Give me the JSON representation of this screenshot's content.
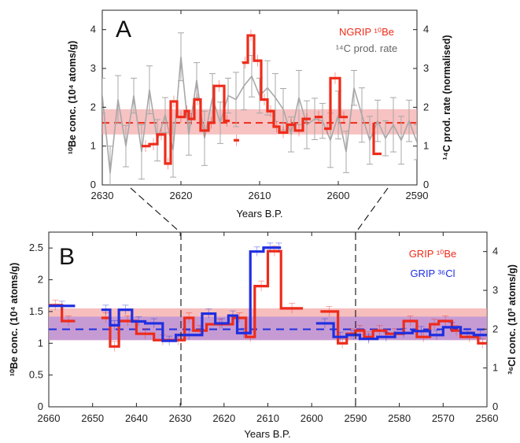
{
  "colors": {
    "red": "#ee2b1a",
    "blue": "#1f2fe0",
    "gray": "#a8a8a8",
    "red_band": "#f4a8a8",
    "purple_band": "#b58fd9"
  },
  "chart_data": [
    {
      "panel": "A",
      "type": "line",
      "xlabel": "Years B.P.",
      "ylabel_left": "¹⁰Be conc. (10⁴ atoms/g)",
      "ylabel_right": "¹⁴C prod. rate (normalised)",
      "xlim": [
        2630,
        2590
      ],
      "ylim": [
        0,
        4.5
      ],
      "xticks": [
        2630,
        2620,
        2610,
        2600,
        2590
      ],
      "yticks": [
        0,
        1,
        2,
        3,
        4
      ],
      "grid": false,
      "legend_position": "top-right",
      "legend": [
        {
          "label": "NGRIP ¹⁰Be",
          "color": "red"
        },
        {
          "label": "¹⁴C prod. rate",
          "color": "gray"
        }
      ],
      "band": {
        "min": 1.3,
        "max": 1.95,
        "mean": 1.6
      },
      "series": [
        {
          "name": "NGRIP ¹⁰Be",
          "kind": "step",
          "color": "red",
          "segments": [
            [
              [
                2625,
                1.0
              ],
              [
                2624,
                1.0
              ],
              [
                2624,
                1.05
              ],
              [
                2623,
                1.05
              ],
              [
                2623,
                1.3
              ],
              [
                2622,
                1.3
              ],
              [
                2622,
                0.55
              ],
              [
                2621.3,
                0.55
              ],
              [
                2621.3,
                2.15
              ],
              [
                2620.5,
                2.15
              ],
              [
                2620.5,
                1.75
              ],
              [
                2619.5,
                1.75
              ],
              [
                2619.5,
                1.9
              ],
              [
                2619,
                1.9
              ],
              [
                2619,
                1.7
              ],
              [
                2618.3,
                1.7
              ],
              [
                2618.3,
                2.2
              ],
              [
                2617.5,
                2.2
              ],
              [
                2617.5,
                1.4
              ],
              [
                2616.5,
                1.4
              ],
              [
                2616.5,
                1.6
              ],
              [
                2615.8,
                1.6
              ],
              [
                2615.8,
                2.55
              ],
              [
                2614.5,
                2.55
              ],
              [
                2614.5,
                1.65
              ],
              [
                2613.8,
                1.65
              ]
            ],
            [
              [
                2613.3,
                1.15
              ],
              [
                2612.6,
                1.15
              ]
            ],
            [
              [
                2612.2,
                3.15
              ],
              [
                2611.5,
                3.15
              ],
              [
                2611.5,
                3.85
              ],
              [
                2610.7,
                3.85
              ],
              [
                2610.7,
                3.2
              ],
              [
                2609.8,
                3.2
              ],
              [
                2609.8,
                2.2
              ],
              [
                2609,
                2.2
              ],
              [
                2609,
                1.9
              ],
              [
                2608.2,
                1.9
              ],
              [
                2608.2,
                1.5
              ],
              [
                2607.5,
                1.5
              ],
              [
                2607.5,
                1.35
              ],
              [
                2606.5,
                1.35
              ],
              [
                2606.5,
                1.55
              ],
              [
                2605.5,
                1.55
              ],
              [
                2605.5,
                1.4
              ],
              [
                2604.5,
                1.4
              ],
              [
                2604.5,
                1.7
              ],
              [
                2603.5,
                1.7
              ]
            ],
            [
              [
                2603,
                1.75
              ],
              [
                2602,
                1.75
              ]
            ],
            [
              [
                2601.8,
                1.45
              ],
              [
                2601,
                1.45
              ],
              [
                2601,
                2.75
              ],
              [
                2599.8,
                2.75
              ],
              [
                2599.8,
                1.75
              ],
              [
                2598.8,
                1.75
              ]
            ],
            [
              [
                2595.5,
                1.6
              ],
              [
                2595.5,
                0.8
              ],
              [
                2594.5,
                0.8
              ]
            ]
          ]
        },
        {
          "name": "¹⁴C prod. rate",
          "kind": "line",
          "color": "gray",
          "x": [
            2630,
            2629,
            2628,
            2627,
            2626,
            2625,
            2624,
            2623,
            2622,
            2621,
            2620,
            2619,
            2618,
            2617,
            2616,
            2615,
            2614,
            2613,
            2612,
            2611,
            2610,
            2609,
            2608,
            2607,
            2606,
            2605,
            2604,
            2603,
            2602,
            2601,
            2600,
            2599,
            2598,
            2597,
            2596,
            2595,
            2594,
            2593,
            2592,
            2591,
            2590
          ],
          "y": [
            2.3,
            0.3,
            2.2,
            1.0,
            2.3,
            0.85,
            2.45,
            1.15,
            1.8,
            0.9,
            3.3,
            1.3,
            2.7,
            1.2,
            2.25,
            1.6,
            2.3,
            2.2,
            2.55,
            2.8,
            2.3,
            2.5,
            2.25,
            1.95,
            1.3,
            2.25,
            1.55,
            1.7,
            1.65,
            1.15,
            1.8,
            0.85,
            2.5,
            1.8,
            1.15,
            1.65,
            1.2,
            1.55,
            1.15,
            1.65,
            1.1
          ]
        }
      ]
    },
    {
      "panel": "B",
      "type": "line",
      "xlabel": "Years B.P.",
      "ylabel_left": "¹⁰Be conc. (10⁴ atoms/g)",
      "ylabel_right": "³⁶Cl conc. (10³ atoms/g)",
      "xlim": [
        2660,
        2560
      ],
      "ylim": [
        0,
        2.75
      ],
      "y2lim": [
        0,
        4.5
      ],
      "xticks": [
        2660,
        2650,
        2640,
        2630,
        2620,
        2610,
        2600,
        2590,
        2580,
        2570,
        2560
      ],
      "yticks": [
        0,
        0.5,
        1,
        1.5,
        2,
        2.5
      ],
      "y2ticks": [
        0,
        1,
        2,
        3,
        4
      ],
      "grid": false,
      "legend_position": "top-right",
      "legend": [
        {
          "label": "GRIP ¹⁰Be",
          "color": "red"
        },
        {
          "label": "GRIP ³⁶Cl",
          "color": "blue"
        }
      ],
      "bands": {
        "red": [
          1.05,
          1.55
        ],
        "blue": [
          1.05,
          1.42
        ],
        "blue_mean": 1.22
      },
      "series": [
        {
          "name": "GRIP ¹⁰Be",
          "kind": "step",
          "color": "red",
          "x_edges": [
            2660,
            2657,
            2654,
            2648,
            2646,
            2644,
            2640,
            2636,
            2632,
            2629,
            2627,
            2624,
            2618,
            2615,
            2613,
            2610,
            2607,
            2602,
            2598,
            2594,
            2592,
            2590,
            2588,
            2586,
            2583,
            2579,
            2576,
            2573,
            2571,
            2568,
            2566,
            2562,
            2560
          ],
          "values": [
            1.6,
            1.35,
            null,
            1.4,
            0.95,
            1.35,
            1.15,
            1.05,
            1.05,
            1.4,
            1.2,
            1.3,
            1.4,
            1.1,
            1.9,
            2.45,
            1.55,
            null,
            1.5,
            1.0,
            1.15,
            1.2,
            1.1,
            1.2,
            1.15,
            1.35,
            1.1,
            1.3,
            1.35,
            1.2,
            1.1,
            1.0
          ]
        },
        {
          "name": "GRIP ³⁶Cl",
          "kind": "step",
          "color": "blue",
          "x_edges": [
            2660,
            2654,
            2648,
            2646,
            2644,
            2641,
            2638,
            2634,
            2631,
            2625,
            2622,
            2619,
            2617,
            2614,
            2611,
            2608,
            2607,
            2599,
            2595,
            2592,
            2589,
            2585,
            2581,
            2577,
            2573,
            2570,
            2566,
            2563,
            2560
          ],
          "values": [
            2.6,
            null,
            2.5,
            2.1,
            2.5,
            2.2,
            2.15,
            1.7,
            1.85,
            2.4,
            2.15,
            2.35,
            1.9,
            4.0,
            4.1,
            4.1,
            null,
            2.15,
            1.8,
            1.85,
            1.75,
            1.8,
            1.9,
            1.95,
            1.85,
            2.05,
            1.9,
            1.85
          ]
        }
      ]
    }
  ],
  "figure": {
    "panel_a": {
      "letter": "A",
      "xlabel": "Years B.P.",
      "ylabel_left": "¹⁰Be conc. (10⁴ atoms/g)",
      "ylabel_right": "¹⁴C prod. rate (normalised)",
      "legend_red": "NGRIP ¹⁰Be",
      "legend_gray": "¹⁴C prod. rate"
    },
    "panel_b": {
      "letter": "B",
      "xlabel": "Years B.P.",
      "ylabel_left": "¹⁰Be conc. (10⁴ atoms/g)",
      "ylabel_right": "³⁶Cl conc. (10³ atoms/g)",
      "legend_red": "GRIP ¹⁰Be",
      "legend_blue": "GRIP ³⁶Cl"
    }
  }
}
